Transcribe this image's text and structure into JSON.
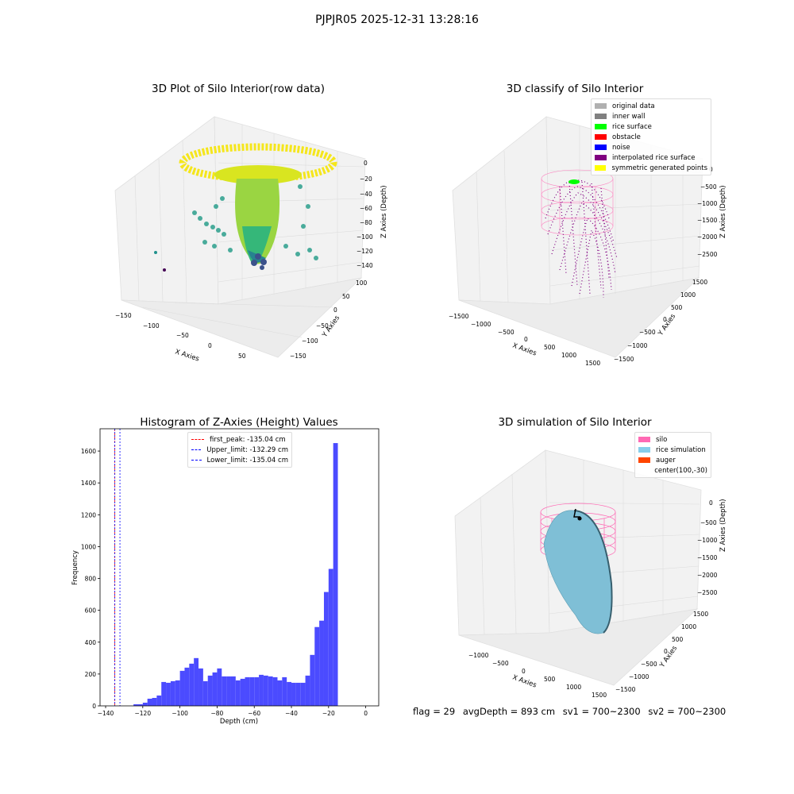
{
  "suptitle": "PJPJR05 2025-12-31 13:28:16",
  "footer": {
    "flag": "flag = 29",
    "avg_depth": "avgDepth = 893 cm",
    "sv1": "sv1 = 700~2300",
    "sv2": "sv2 = 700~2300"
  },
  "colors": {
    "histogram_bar": "#4b4bff",
    "first_peak_line": "#ff0000",
    "limit_lines": "#0000ff"
  },
  "chart_data": [
    {
      "type": "scatter",
      "projection": "3d",
      "title": "3D Plot of Silo Interior(row data)",
      "xlabel": "X Axies",
      "ylabel": "Y Axies",
      "zlabel": "Z Axies (Depth)",
      "x_ticks": [
        "−150",
        "−100",
        "−50",
        "0",
        "50"
      ],
      "y_ticks": [
        "100",
        "50",
        "0",
        "−50",
        "−100",
        "−150"
      ],
      "z_ticks": [
        "0",
        "−20",
        "−40",
        "−60",
        "−80",
        "−100",
        "−120",
        "−140"
      ],
      "colormap": "viridis"
    },
    {
      "type": "scatter",
      "projection": "3d",
      "title": "3D classify of Silo Interior",
      "xlabel": "X Axies",
      "ylabel": "Y Axies",
      "zlabel": "Z Axies (Depth)",
      "x_ticks": [
        "−1500",
        "−1000",
        "−500",
        "0",
        "500",
        "1000",
        "1500"
      ],
      "y_ticks": [
        "1500",
        "1000",
        "500",
        "0",
        "−500",
        "−1000",
        "−1500"
      ],
      "z_ticks": [
        "0",
        "−500",
        "−1000",
        "−1500",
        "−2000",
        "−2500"
      ],
      "legend": [
        {
          "label": "original data",
          "color": "#b0b0b0"
        },
        {
          "label": "inner wall",
          "color": "#808080"
        },
        {
          "label": "rice surface",
          "color": "#00ff00"
        },
        {
          "label": "obstacle",
          "color": "#ff0000"
        },
        {
          "label": "noise",
          "color": "#0000ff"
        },
        {
          "label": "interpolated rice surface",
          "color": "#800080"
        },
        {
          "label": "symmetric generated points",
          "color": "#ffff00"
        }
      ]
    },
    {
      "type": "bar",
      "title": "Histogram of Z-Axies (Height) Values",
      "xlabel": "Depth (cm)",
      "ylabel": "Frequency",
      "xlim": [
        -143,
        7
      ],
      "ylim": [
        0,
        1740
      ],
      "x_ticks": [
        -140,
        -120,
        -100,
        -80,
        -60,
        -40,
        -20,
        0
      ],
      "x_tick_labels": [
        "−140",
        "−120",
        "−100",
        "−80",
        "−60",
        "−40",
        "−20",
        "0"
      ],
      "y_ticks": [
        0,
        200,
        400,
        600,
        800,
        1000,
        1200,
        1400,
        1600
      ],
      "y_tick_labels": [
        "0",
        "200",
        "400",
        "600",
        "800",
        "1000",
        "1200",
        "1400",
        "1600"
      ],
      "bin_width": 2.5,
      "bin_start": -125,
      "values": [
        10,
        10,
        20,
        45,
        50,
        65,
        150,
        145,
        155,
        160,
        220,
        240,
        265,
        300,
        235,
        155,
        190,
        210,
        235,
        185,
        185,
        185,
        160,
        170,
        180,
        180,
        180,
        195,
        190,
        185,
        180,
        160,
        180,
        150,
        145,
        145,
        145,
        190,
        320,
        495,
        535,
        715,
        860,
        1650
      ],
      "vlines": [
        {
          "label": "first_peak: -135.04 cm",
          "x": -135.04,
          "color": "#ff0000"
        },
        {
          "label": "Upper_limit: -132.29 cm",
          "x": -132.29,
          "color": "#0000ff"
        },
        {
          "label": "Lower_limit: -135.04 cm",
          "x": -135.04,
          "color": "#0000ff"
        }
      ]
    },
    {
      "type": "scatter",
      "projection": "3d",
      "title": "3D simulation of Silo Interior",
      "xlabel": "X Axies",
      "ylabel": "Y Axies",
      "zlabel": "Z Axies (Depth)",
      "x_ticks": [
        "−1000",
        "−500",
        "0",
        "500",
        "1000",
        "1500"
      ],
      "y_ticks": [
        "1500",
        "1000",
        "500",
        "0",
        "−500",
        "−1000",
        "−1500"
      ],
      "z_ticks": [
        "0",
        "−500",
        "−1000",
        "−1500",
        "−2000",
        "−2500"
      ],
      "legend": [
        {
          "label": "silo",
          "color": "#ff69b4"
        },
        {
          "label": "rice simulation",
          "color": "#87ceeb"
        },
        {
          "label": "auger",
          "color": "#ff4500"
        },
        {
          "label": "center(100,-30)",
          "color": ""
        }
      ]
    }
  ]
}
